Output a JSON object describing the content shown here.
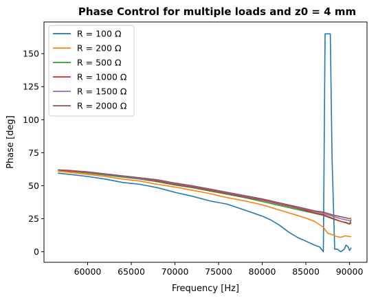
{
  "chart_data": {
    "type": "line",
    "title": "Phase Control for multiple loads and z0 = 4 mm",
    "xlabel": "Frequency [Hz]",
    "ylabel": "Phase [deg]",
    "xlim": [
      55000,
      92000
    ],
    "ylim": [
      -8,
      174
    ],
    "x_ticks": [
      60000,
      65000,
      70000,
      75000,
      80000,
      85000,
      90000
    ],
    "x_tick_labels": [
      "60000",
      "65000",
      "70000",
      "75000",
      "80000",
      "85000",
      "90000"
    ],
    "y_ticks": [
      0,
      25,
      50,
      75,
      100,
      125,
      150
    ],
    "y_tick_labels": [
      "0",
      "25",
      "50",
      "75",
      "100",
      "125",
      "150"
    ],
    "grid": false,
    "legend_position": "top-left",
    "series": [
      {
        "name": "R = 100 Ω",
        "color": "#1f77b4",
        "x": [
          56600,
          58000,
          60000,
          62000,
          64000,
          66000,
          68000,
          70000,
          72000,
          74000,
          76000,
          78000,
          80000,
          81000,
          82000,
          83000,
          84000,
          85000,
          86000,
          86600,
          87000,
          87200,
          87400,
          87800,
          88000,
          88300,
          88600,
          89000,
          89400,
          89600,
          89800,
          90000,
          90200
        ],
        "y": [
          59.5,
          58.5,
          57,
          55,
          52.5,
          51,
          48.5,
          45,
          42,
          38.5,
          36,
          31.5,
          27,
          24,
          20,
          15,
          11,
          8,
          5,
          3.5,
          0,
          165,
          165,
          165,
          70,
          2,
          2,
          0,
          2,
          5,
          4,
          1,
          3
        ]
      },
      {
        "name": "R = 200 Ω",
        "color": "#ff7f0e",
        "x": [
          56600,
          58000,
          60000,
          62000,
          64000,
          66000,
          68000,
          70000,
          72000,
          74000,
          76000,
          78000,
          80000,
          82000,
          84000,
          85000,
          86000,
          87000,
          87500,
          88000,
          88500,
          89000,
          89500,
          90000,
          90200
        ],
        "y": [
          61,
          60,
          58.5,
          57,
          55,
          53.5,
          51,
          49,
          46.5,
          44,
          41,
          38.5,
          35.5,
          31.5,
          27.5,
          25.5,
          23,
          18.5,
          14,
          13,
          11.5,
          11,
          12,
          11.5,
          11.5
        ]
      },
      {
        "name": "R = 500 Ω",
        "color": "#2ca02c",
        "x": [
          56600,
          58000,
          60000,
          62000,
          64000,
          66000,
          68000,
          70000,
          72000,
          74000,
          76000,
          78000,
          80000,
          82000,
          84000,
          86000,
          87000,
          88000,
          89000,
          89700,
          90000,
          90200
        ],
        "y": [
          62,
          61,
          59.5,
          58,
          56.5,
          55,
          53,
          50.5,
          48.5,
          46,
          43.5,
          41,
          38,
          35,
          32,
          29,
          27.5,
          25,
          23,
          22,
          21,
          24.5
        ]
      },
      {
        "name": "R = 1000 Ω",
        "color": "#d62728",
        "x": [
          56600,
          58000,
          60000,
          62000,
          64000,
          66000,
          68000,
          70000,
          72000,
          74000,
          76000,
          78000,
          80000,
          82000,
          84000,
          86000,
          87000,
          88000,
          89000,
          90000,
          90200
        ],
        "y": [
          62,
          61,
          60,
          58.5,
          57,
          55.5,
          53.5,
          51,
          49,
          46.5,
          44,
          41.5,
          39,
          36,
          33,
          29.5,
          28,
          25.5,
          23,
          21,
          22
        ]
      },
      {
        "name": "R = 1500 Ω",
        "color": "#9467bd",
        "x": [
          56600,
          58000,
          60000,
          62000,
          64000,
          66000,
          68000,
          70000,
          72000,
          74000,
          76000,
          78000,
          80000,
          82000,
          84000,
          86000,
          87000,
          88000,
          89000,
          90000,
          90200
        ],
        "y": [
          62,
          61.5,
          60,
          58.5,
          57,
          55.5,
          54,
          51.5,
          49.5,
          47,
          44.5,
          42,
          39.5,
          36.5,
          33.5,
          30.5,
          29,
          27,
          25,
          23.5,
          24
        ]
      },
      {
        "name": "R = 2000 Ω",
        "color": "#8c564b",
        "x": [
          56600,
          58000,
          60000,
          62000,
          64000,
          66000,
          68000,
          70000,
          72000,
          74000,
          76000,
          78000,
          80000,
          82000,
          84000,
          86000,
          87000,
          88000,
          89000,
          90000,
          90200
        ],
        "y": [
          62,
          61.5,
          60.5,
          59,
          57.5,
          56,
          54.5,
          52,
          50,
          47.5,
          45,
          42.5,
          40,
          37,
          34,
          31,
          30,
          28,
          26.5,
          25,
          25.5
        ]
      }
    ]
  }
}
